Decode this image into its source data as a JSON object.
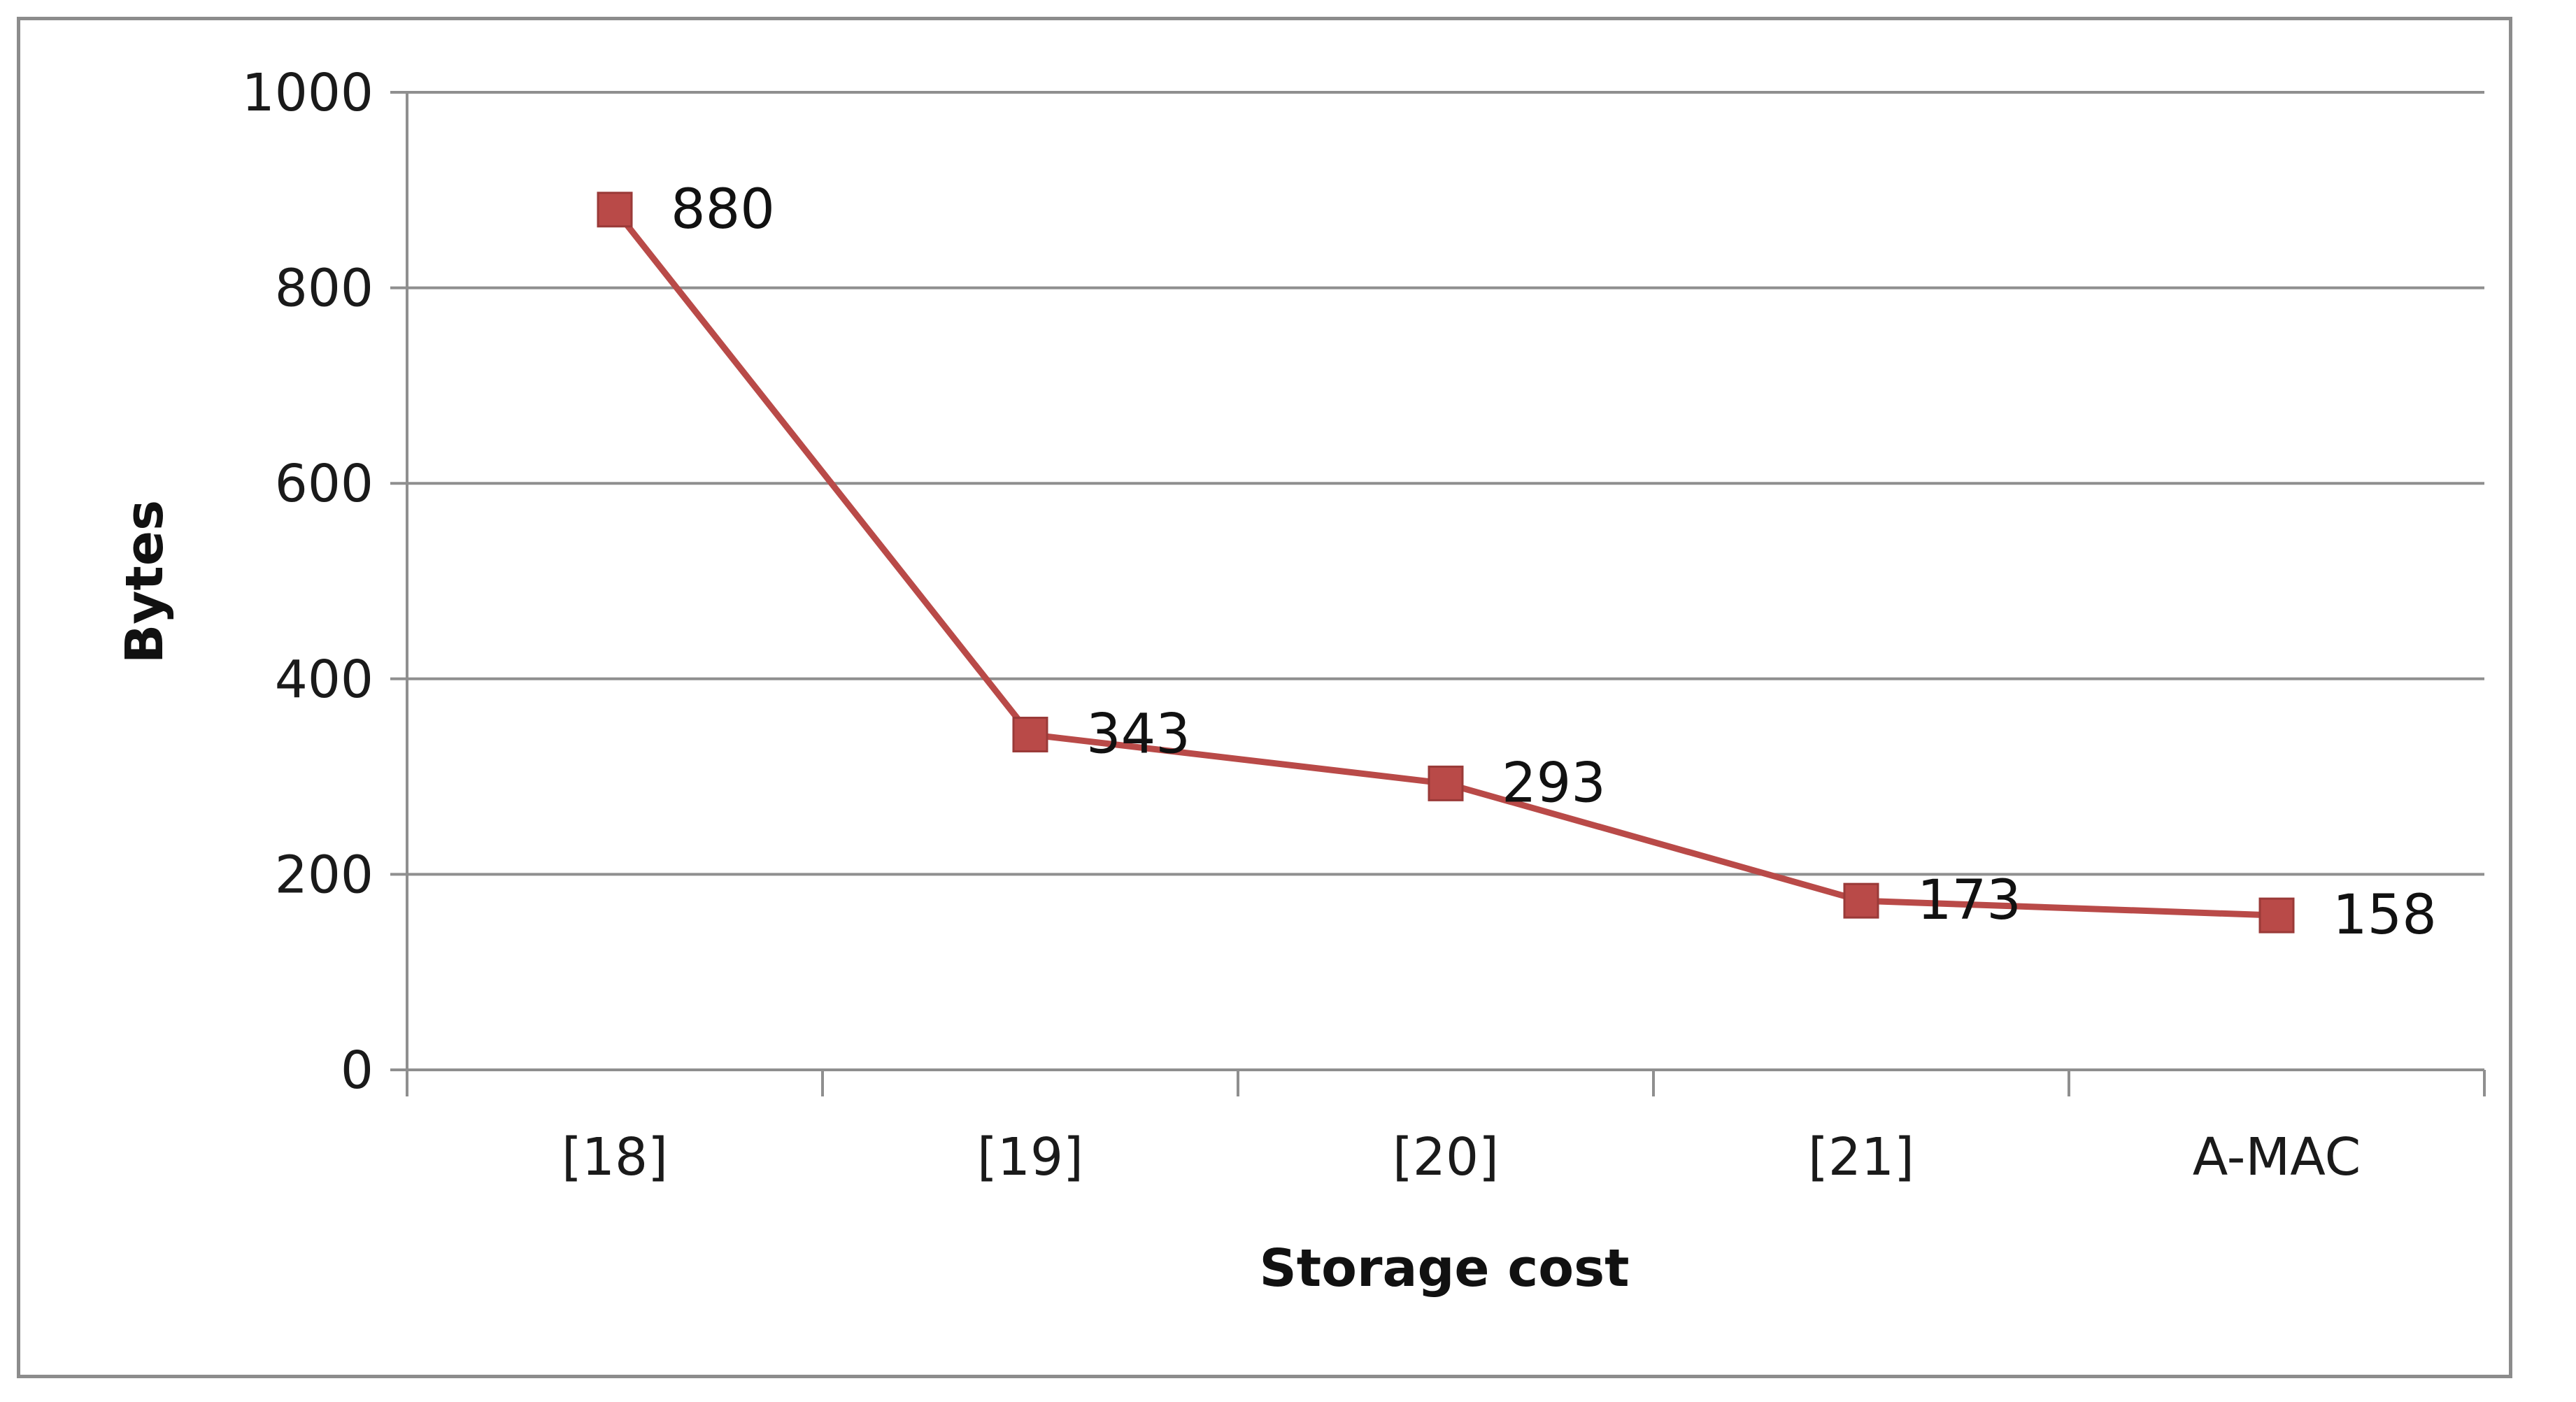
{
  "chart_data": {
    "type": "line",
    "title": "",
    "xlabel": "Storage cost",
    "ylabel": "Bytes",
    "categories": [
      "[18]",
      "[19]",
      "[20]",
      "[21]",
      "A-MAC"
    ],
    "series": [
      {
        "values": [
          880,
          343,
          293,
          173,
          158
        ],
        "color": "#b94a48",
        "marker": "square"
      }
    ],
    "data_labels": [
      "880",
      "343",
      "293",
      "173",
      "158"
    ],
    "yticks": [
      0,
      200,
      400,
      600,
      800,
      1000
    ],
    "ylim": [
      0,
      1000
    ],
    "grid": true,
    "legend": "none"
  }
}
